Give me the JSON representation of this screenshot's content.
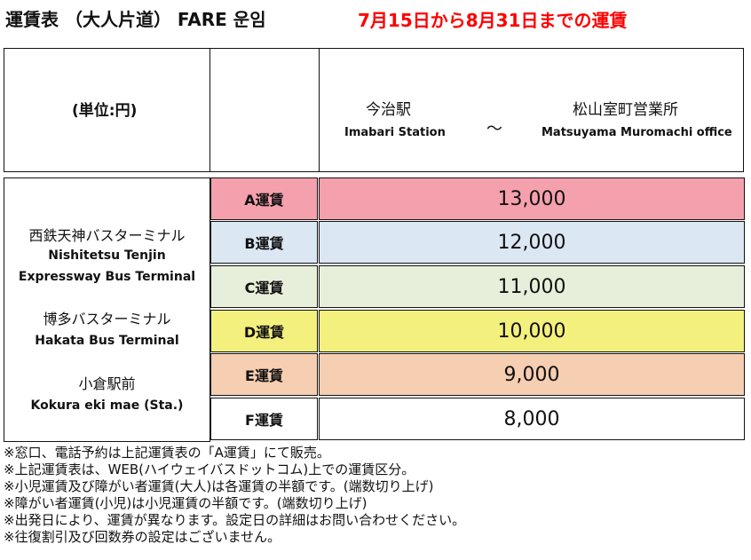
{
  "title": {
    "main": "運賃表 （大人片道） FARE 운임",
    "period": "7月15日から8月31日までの運賃"
  },
  "header": {
    "unit": "(単位:円)",
    "origin_ja": "今治駅",
    "origin_en": "Imabari Station",
    "tilde": "〜",
    "destination_ja": "松山室町営業所",
    "destination_en": "Matsuyama Muromachi office"
  },
  "stops": [
    {
      "ja": "西鉄天神バスターミナル",
      "en1": "Nishitetsu Tenjin",
      "en2": "Expressway Bus Terminal"
    },
    {
      "ja": "博多バスターミナル",
      "en1": "Hakata Bus Terminal",
      "en2": ""
    },
    {
      "ja": "小倉駅前",
      "en1": "Kokura eki mae (Sta.)",
      "en2": ""
    }
  ],
  "fares": [
    {
      "label": "A運賃",
      "value": "13,000",
      "color": "#f4a0ad"
    },
    {
      "label": "B運賃",
      "value": "12,000",
      "color": "#dce7f4"
    },
    {
      "label": "C運賃",
      "value": "11,000",
      "color": "#e7efda"
    },
    {
      "label": "D運賃",
      "value": "10,000",
      "color": "#f3f07e"
    },
    {
      "label": "E運賃",
      "value": "9,000",
      "color": "#f6ceb1"
    },
    {
      "label": "F運賃",
      "value": "8,000",
      "color": "#ffffff"
    }
  ],
  "notes": [
    "※窓口、電話予約は上記運賃表の「A運賃」にて販売。",
    "※上記運賃表は、WEB(ハイウェイバスドットコム)上での運賃区分。",
    "※小児運賃及び障がい者運賃(大人)は各運賃の半額です。(端数切り上げ)",
    "※障がい者運賃(小児)は小児運賃の半額です。(端数切り上げ)",
    "※出発日により、運賃が異なります。設定日の詳細はお問い合わせください。",
    "※往復割引及び回数券の設定はございません。"
  ]
}
